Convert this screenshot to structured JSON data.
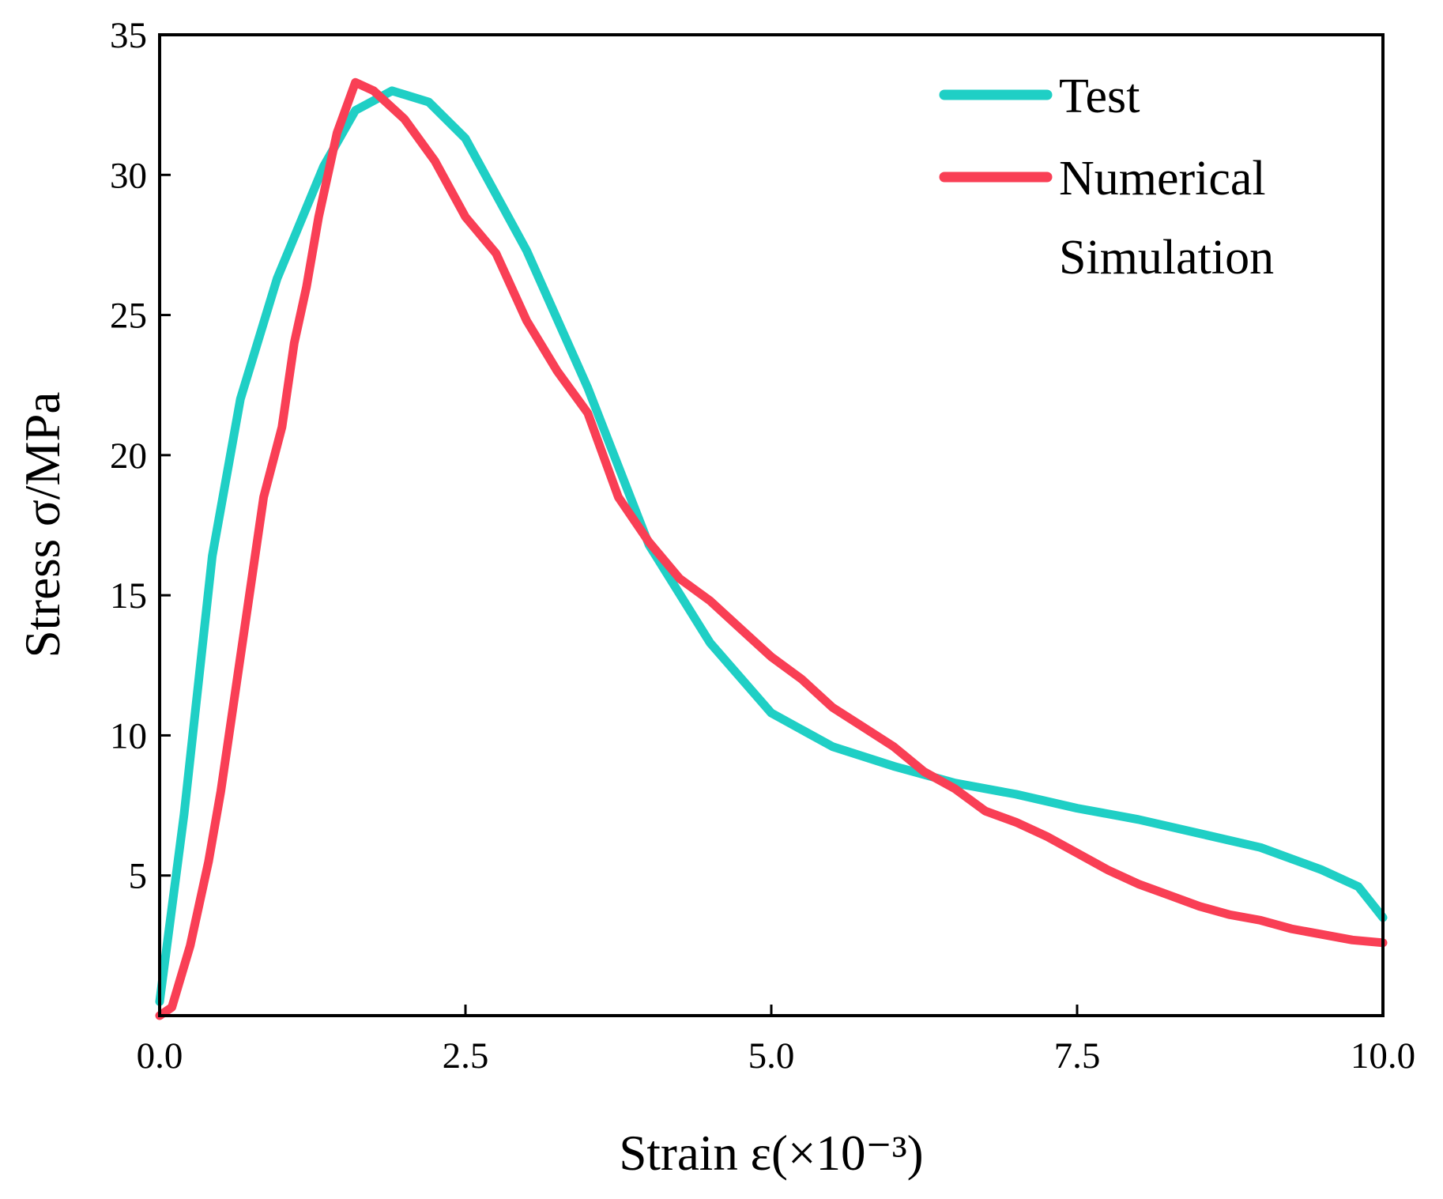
{
  "chart_data": {
    "type": "line",
    "xlabel": "Strain ε(×10⁻³)",
    "ylabel": "Stress σ/MPa",
    "xlim": [
      0,
      10
    ],
    "ylim": [
      0,
      35
    ],
    "xticks": [
      {
        "value": 0,
        "label": "0.0"
      },
      2.5,
      {
        "value": 5,
        "label": "5.0"
      },
      7.5,
      {
        "value": 10,
        "label": "10.0"
      }
    ],
    "yticks": [
      5,
      10,
      15,
      20,
      25,
      30,
      35
    ],
    "legend": "upper right",
    "series": [
      {
        "name": "Test",
        "color": "#1fcfc5",
        "x": [
          0,
          0.2,
          0.43,
          0.66,
          0.96,
          1.34,
          1.6,
          1.9,
          2.2,
          2.5,
          3.0,
          3.5,
          4.0,
          4.5,
          5.0,
          5.5,
          6.0,
          6.5,
          7.0,
          7.5,
          8.0,
          8.5,
          9.0,
          9.5,
          9.8,
          10.0
        ],
        "values": [
          0.5,
          7.2,
          16.4,
          22,
          26.3,
          30.3,
          32.3,
          33,
          32.6,
          31.3,
          27.3,
          22.4,
          16.8,
          13.3,
          10.8,
          9.6,
          8.9,
          8.3,
          7.9,
          7.4,
          7.0,
          6.5,
          6.0,
          5.2,
          4.6,
          3.5
        ]
      },
      {
        "name": "Numerical Simulation",
        "color": "#f93f55",
        "x": [
          0,
          0.1,
          0.25,
          0.4,
          0.5,
          0.7,
          0.85,
          1.0,
          1.1,
          1.2,
          1.3,
          1.45,
          1.6,
          1.75,
          2.0,
          2.25,
          2.5,
          2.75,
          3.0,
          3.25,
          3.5,
          3.75,
          4.0,
          4.25,
          4.5,
          4.75,
          5.0,
          5.25,
          5.5,
          5.75,
          6.0,
          6.25,
          6.5,
          6.75,
          7.0,
          7.25,
          7.5,
          7.75,
          8.0,
          8.25,
          8.5,
          8.75,
          9.0,
          9.25,
          9.5,
          9.75,
          10.0
        ],
        "values": [
          0,
          0.3,
          2.5,
          5.5,
          8,
          14,
          18.5,
          21,
          24,
          26,
          28.5,
          31.5,
          33.3,
          33,
          32,
          30.5,
          28.5,
          27.2,
          24.8,
          23,
          21.5,
          18.5,
          16.9,
          15.6,
          14.8,
          13.8,
          12.8,
          12,
          11,
          10.3,
          9.6,
          8.7,
          8.1,
          7.3,
          6.9,
          6.4,
          5.8,
          5.2,
          4.7,
          4.3,
          3.9,
          3.6,
          3.4,
          3.1,
          2.9,
          2.7,
          2.6
        ]
      }
    ]
  }
}
